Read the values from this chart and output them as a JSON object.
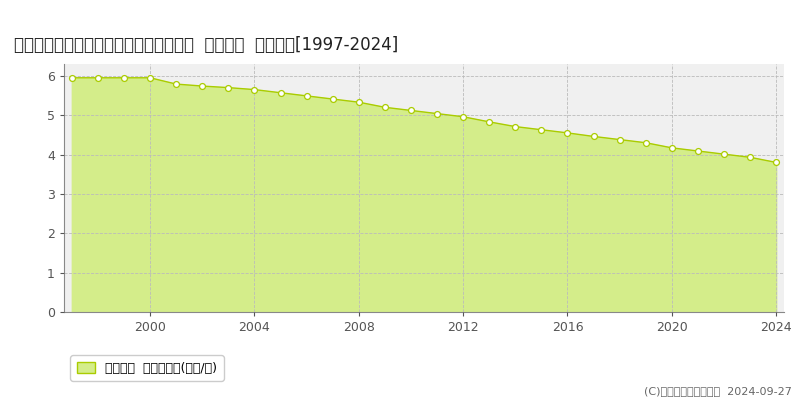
{
  "title": "新潟県岩船郡関川村大字下関８９４番２  基準地価  地価推移[1997-2024]",
  "years": [
    1997,
    1998,
    1999,
    2000,
    2001,
    2002,
    2003,
    2004,
    2005,
    2006,
    2007,
    2008,
    2009,
    2010,
    2011,
    2012,
    2013,
    2014,
    2015,
    2016,
    2017,
    2018,
    2019,
    2020,
    2021,
    2022,
    2023,
    2024
  ],
  "values": [
    5.95,
    5.95,
    5.95,
    5.95,
    5.79,
    5.74,
    5.7,
    5.65,
    5.57,
    5.49,
    5.41,
    5.33,
    5.2,
    5.12,
    5.04,
    4.96,
    4.83,
    4.71,
    4.63,
    4.55,
    4.46,
    4.38,
    4.3,
    4.17,
    4.09,
    4.01,
    3.93,
    3.8
  ],
  "fill_color": "#d4ed8a",
  "line_color": "#aacc00",
  "marker_facecolor": "#ffffff",
  "marker_edgecolor": "#aacc00",
  "background_color": "#ffffff",
  "plot_bg_color": "#f0f0f0",
  "grid_color": "#bbbbbb",
  "title_fontsize": 12,
  "ylim": [
    0,
    6.3
  ],
  "yticks": [
    0,
    1,
    2,
    3,
    4,
    5,
    6
  ],
  "legend_label": "基準地価  平均坪単価(万円/坪)",
  "copyright_text": "(C)土地価格ドットコム  2024-09-27",
  "xtick_years": [
    2000,
    2004,
    2008,
    2012,
    2016,
    2020,
    2024
  ]
}
